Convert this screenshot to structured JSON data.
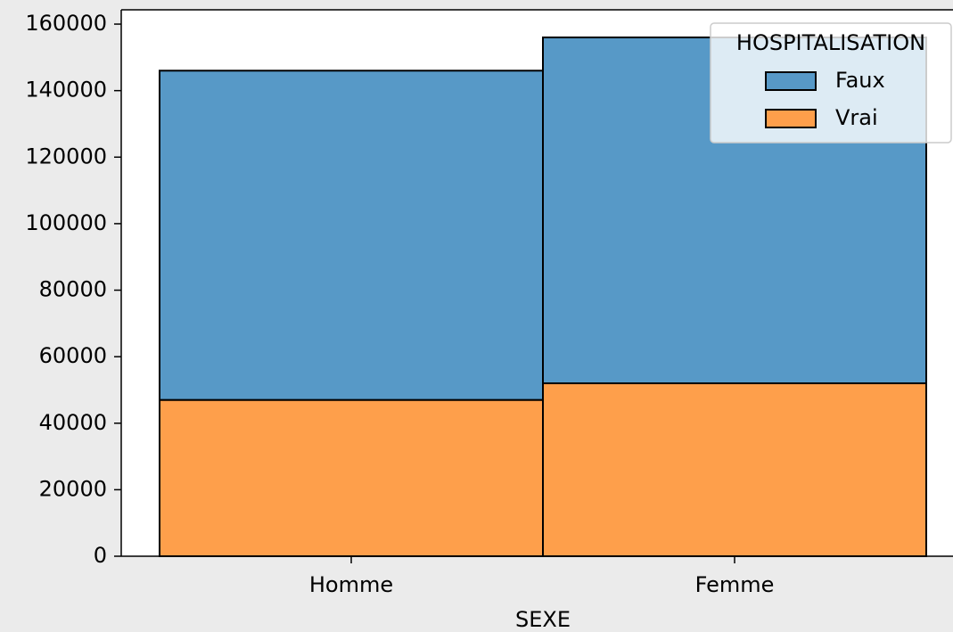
{
  "chart_data": {
    "type": "stacked_bar",
    "categories": [
      "Homme",
      "Femme"
    ],
    "x_label": "SEXE",
    "series": [
      {
        "name": "Faux",
        "color": "#5799c7",
        "values": [
          99000,
          104000
        ]
      },
      {
        "name": "Vrai",
        "color": "#fe9f4b",
        "values": [
          47000,
          52000
        ]
      }
    ],
    "legend_title": "HOSPITALISATION",
    "legend_position": "upper right",
    "ylim": [
      0,
      164300
    ],
    "yticks": [
      0,
      20000,
      40000,
      60000,
      80000,
      100000,
      120000,
      140000,
      160000
    ]
  }
}
